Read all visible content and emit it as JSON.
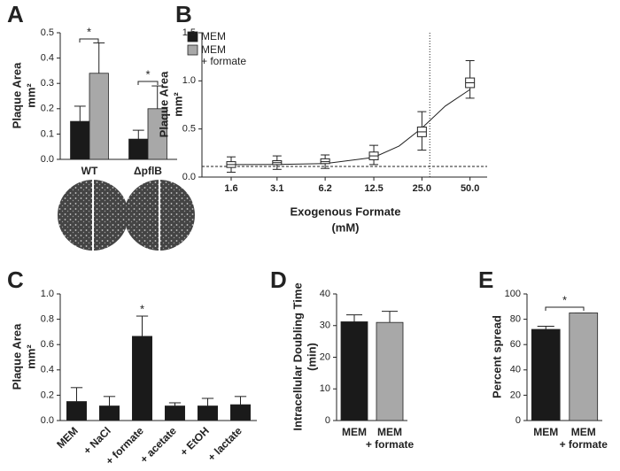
{
  "chart_data": [
    {
      "panel": "A",
      "type": "bar",
      "y_label": [
        "Plaque Area",
        "mm²"
      ],
      "categories": [
        "WT",
        "ΔpflB"
      ],
      "series": [
        {
          "name": "MEM",
          "color": "#1a1a1a",
          "values": [
            0.15,
            0.08
          ],
          "errors": [
            0.06,
            0.035
          ]
        },
        {
          "name": [
            "MEM",
            "+ formate"
          ],
          "color": "#a8a8a8",
          "values": [
            0.34,
            0.2
          ],
          "errors": [
            0.12,
            0.09
          ]
        }
      ],
      "ylim": [
        0,
        0.5
      ],
      "yticks": [
        {
          "value": 0,
          "label": "0.0"
        },
        0.1,
        0.2,
        0.3,
        0.4,
        0.5
      ],
      "annotations": [
        "*",
        "*"
      ]
    },
    {
      "panel": "B",
      "type": "box",
      "y_label": [
        "Plaque Area",
        "mm²"
      ],
      "x_label": [
        "Exogenous Formate",
        "(mM)"
      ],
      "log_x": true,
      "x": [
        1.6,
        3.1,
        6.2,
        12.5,
        25,
        50
      ],
      "medians": [
        0.13,
        0.15,
        0.16,
        0.22,
        0.47,
        0.98
      ],
      "q1": [
        0.1,
        0.13,
        0.14,
        0.18,
        0.42,
        0.93
      ],
      "q3": [
        0.16,
        0.17,
        0.19,
        0.26,
        0.52,
        1.03
      ],
      "whisker_low": [
        0.05,
        0.08,
        0.09,
        0.13,
        0.28,
        0.82
      ],
      "whisker_high": [
        0.21,
        0.22,
        0.23,
        0.33,
        0.68,
        1.21
      ],
      "fit": {
        "x": [
          1.6,
          3.1,
          6.2,
          12.5,
          18,
          25,
          35,
          50
        ],
        "values": [
          0.13,
          0.131,
          0.14,
          0.205,
          0.323,
          0.51,
          0.738,
          0.91
        ]
      },
      "hline": 0.11,
      "vline": 28,
      "xlim": [
        1.05,
        64
      ],
      "xticks": [
        1.6,
        3.1,
        6.2,
        12.5,
        {
          "value": 25,
          "label": "25.0"
        },
        {
          "value": 50,
          "label": "50.0"
        }
      ],
      "ylim": [
        0,
        1.5
      ],
      "yticks": [
        {
          "value": 0,
          "label": "0.0"
        },
        0.5,
        {
          "value": 1,
          "label": "1.0"
        },
        1.5
      ]
    },
    {
      "panel": "C",
      "type": "bar",
      "y_label": [
        "Plaque Area",
        "mm²"
      ],
      "rotate_labels": true,
      "categories": [
        "MEM",
        "+ NaCl",
        "+ formate",
        "+ acetate",
        "+ EtOH",
        "+ lactate"
      ],
      "values": [
        0.15,
        0.115,
        0.665,
        0.115,
        0.115,
        0.125
      ],
      "errors": [
        0.11,
        0.075,
        0.16,
        0.025,
        0.06,
        0.065
      ],
      "color": "#1a1a1a",
      "ylim": [
        0,
        1.0
      ],
      "yticks": [
        {
          "value": 0,
          "label": "0.0"
        },
        0.2,
        0.4,
        0.6,
        0.8,
        {
          "value": 1,
          "label": "1.0"
        }
      ],
      "annotations": [
        "*"
      ]
    },
    {
      "panel": "D",
      "type": "bar",
      "y_label": [
        "Intracellular Doubling Time",
        "(min)"
      ],
      "categories": [
        "MEM",
        [
          "MEM",
          "+ formate"
        ]
      ],
      "values": [
        31.2,
        31
      ],
      "errors": [
        2.2,
        3.5
      ],
      "colors": [
        "#1a1a1a",
        "#a8a8a8"
      ],
      "ylim": [
        0,
        40
      ],
      "yticks": [
        0,
        10,
        20,
        30,
        40
      ]
    },
    {
      "panel": "E",
      "type": "bar",
      "y_label": "Percent spread",
      "categories": [
        "MEM",
        [
          "MEM",
          "+ formate"
        ]
      ],
      "values": [
        72,
        85
      ],
      "errors": [
        2.5,
        0
      ],
      "colors": [
        "#1a1a1a",
        "#a8a8a8"
      ],
      "ylim": [
        0,
        100
      ],
      "yticks": [
        0,
        20,
        40,
        60,
        80,
        100
      ],
      "annotations": [
        "*"
      ]
    }
  ]
}
